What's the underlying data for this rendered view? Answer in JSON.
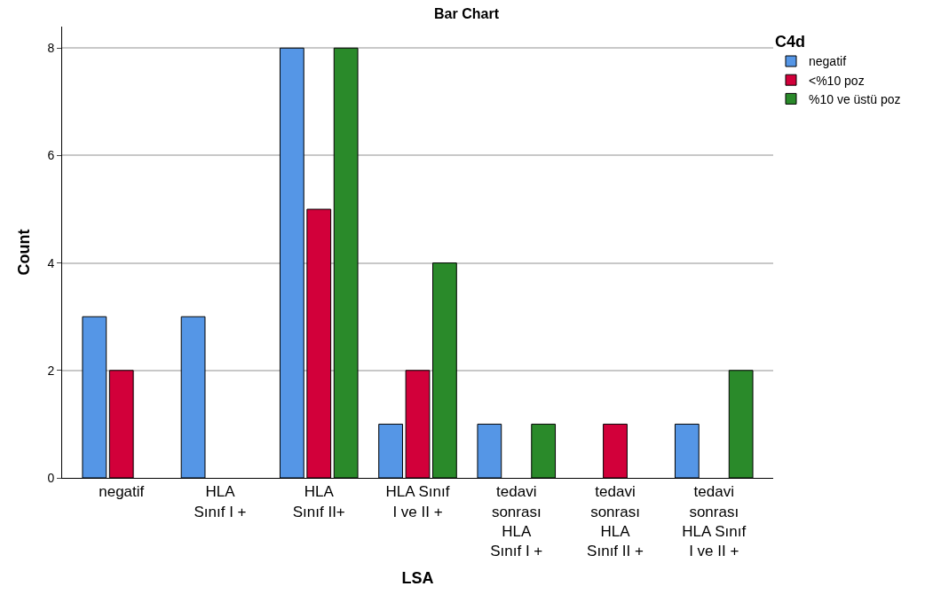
{
  "chart_data": {
    "type": "bar",
    "title": "Bar Chart",
    "xlabel": "LSA",
    "ylabel": "Count",
    "legend_title": "C4d",
    "categories": [
      "negatif",
      "HLA\nSınıf I +",
      "HLA\nSınıf II+",
      "HLA Sınıf\nI ve II +",
      "tedavi\nsonrası\nHLA\nSınıf I +",
      "tedavi\nsonrası\nHLA\nSınıf II +",
      "tedavi\nsonrası\nHLA Sınıf\nI ve II +"
    ],
    "series": [
      {
        "name": "negatif",
        "color": "#5596e6",
        "values": [
          3,
          3,
          8,
          1,
          1,
          null,
          1
        ]
      },
      {
        "name": "<%10 poz",
        "color": "#d2003a",
        "values": [
          2,
          null,
          5,
          2,
          null,
          1,
          null
        ]
      },
      {
        "name": "%10 ve üstü poz",
        "color": "#2a8a2a",
        "values": [
          null,
          null,
          8,
          4,
          1,
          null,
          2
        ]
      }
    ],
    "ylim": [
      0,
      8.4
    ],
    "yticks": [
      0,
      2,
      4,
      6,
      8
    ],
    "grid": "y",
    "legend": "top right"
  }
}
